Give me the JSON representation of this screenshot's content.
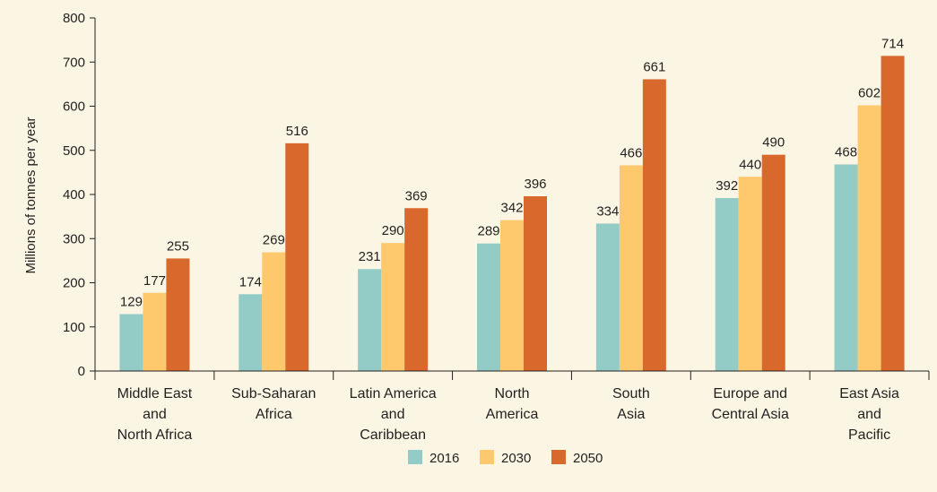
{
  "chart_data": {
    "type": "bar",
    "ylabel": "Millions of tonnes per year",
    "ylim": [
      0,
      800
    ],
    "yticks": [
      0,
      100,
      200,
      300,
      400,
      500,
      600,
      700,
      800
    ],
    "grid": false,
    "legend_position": "bottom-center",
    "categories": [
      [
        "Middle East",
        "and",
        "North Africa"
      ],
      [
        "Sub-Saharan",
        "Africa"
      ],
      [
        "Latin America",
        "and",
        "Caribbean"
      ],
      [
        "North",
        "America"
      ],
      [
        "South",
        "Asia"
      ],
      [
        "Europe and",
        "Central Asia"
      ],
      [
        "East Asia",
        "and",
        "Pacific"
      ]
    ],
    "series": [
      {
        "name": "2016",
        "color": "#93cbc7",
        "values": [
          129,
          174,
          231,
          289,
          334,
          392,
          468
        ]
      },
      {
        "name": "2030",
        "color": "#fdc96c",
        "values": [
          177,
          269,
          290,
          342,
          466,
          440,
          602
        ]
      },
      {
        "name": "2050",
        "color": "#d9682c",
        "values": [
          255,
          516,
          369,
          396,
          661,
          490,
          714
        ]
      }
    ]
  }
}
